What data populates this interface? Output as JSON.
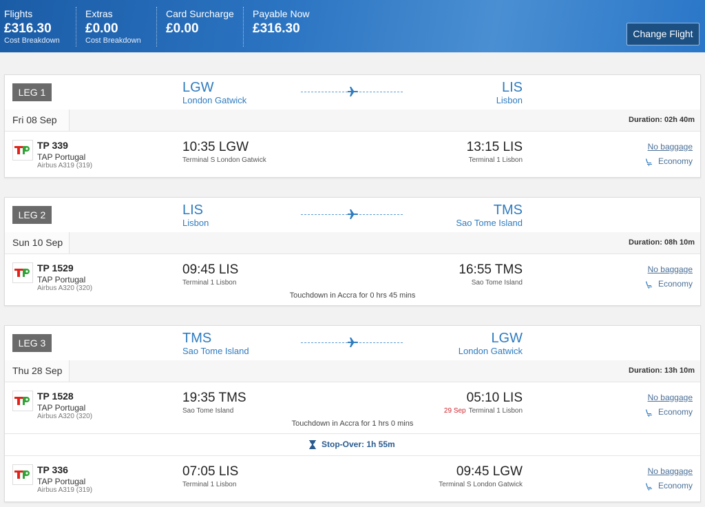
{
  "header": {
    "items": [
      {
        "label": "Flights",
        "amount": "£316.30",
        "link": "Cost Breakdown"
      },
      {
        "label": "Extras",
        "amount": "£0.00",
        "link": "Cost Breakdown"
      },
      {
        "label": "Card Surcharge",
        "amount": "£0.00"
      },
      {
        "label": "Payable Now",
        "amount": "£316.30"
      }
    ],
    "button": "Change Flight"
  },
  "legs": [
    {
      "label": "LEG 1",
      "from": {
        "code": "LGW",
        "name": "London Gatwick"
      },
      "to": {
        "code": "LIS",
        "name": "Lisbon"
      },
      "date": "Fri 08 Sep",
      "duration": "Duration: 02h 40m",
      "flights": [
        {
          "number": "TP 339",
          "airline": "TAP Portugal",
          "aircraft": "Airbus A319 (319)",
          "dep_time": "10:35 LGW",
          "dep_terminal": "Terminal S London Gatwick",
          "arr_time": "13:15 LIS",
          "arr_terminal": "Terminal 1 Lisbon",
          "baggage": "No baggage",
          "cabin": "Economy"
        }
      ]
    },
    {
      "label": "LEG 2",
      "from": {
        "code": "LIS",
        "name": "Lisbon"
      },
      "to": {
        "code": "TMS",
        "name": "Sao Tome Island"
      },
      "date": "Sun 10 Sep",
      "duration": "Duration: 08h 10m",
      "flights": [
        {
          "number": "TP 1529",
          "airline": "TAP Portugal",
          "aircraft": "Airbus A320 (320)",
          "dep_time": "09:45 LIS",
          "dep_terminal": "Terminal 1 Lisbon",
          "arr_time": "16:55 TMS",
          "arr_terminal": "Sao Tome Island",
          "baggage": "No baggage",
          "cabin": "Economy",
          "note": "Touchdown in Accra for 0 hrs 45 mins"
        }
      ]
    },
    {
      "label": "LEG 3",
      "from": {
        "code": "TMS",
        "name": "Sao Tome Island"
      },
      "to": {
        "code": "LGW",
        "name": "London Gatwick"
      },
      "date": "Thu 28 Sep",
      "duration": "Duration: 13h 10m",
      "stopover": "Stop-Over: 1h 55m",
      "flights": [
        {
          "number": "TP 1528",
          "airline": "TAP Portugal",
          "aircraft": "Airbus A320 (320)",
          "dep_time": "19:35 TMS",
          "dep_terminal": "Sao Tome Island",
          "arr_time": "05:10 LIS",
          "arr_date": "29 Sep",
          "arr_terminal": "Terminal 1 Lisbon",
          "baggage": "No baggage",
          "cabin": "Economy",
          "note": "Touchdown in Accra for 1 hrs 0 mins"
        },
        {
          "number": "TP 336",
          "airline": "TAP Portugal",
          "aircraft": "Airbus A319 (319)",
          "dep_time": "07:05 LIS",
          "dep_terminal": "Terminal 1 Lisbon",
          "arr_time": "09:45 LGW",
          "arr_terminal": "Terminal S London Gatwick",
          "baggage": "No baggage",
          "cabin": "Economy"
        }
      ]
    }
  ]
}
